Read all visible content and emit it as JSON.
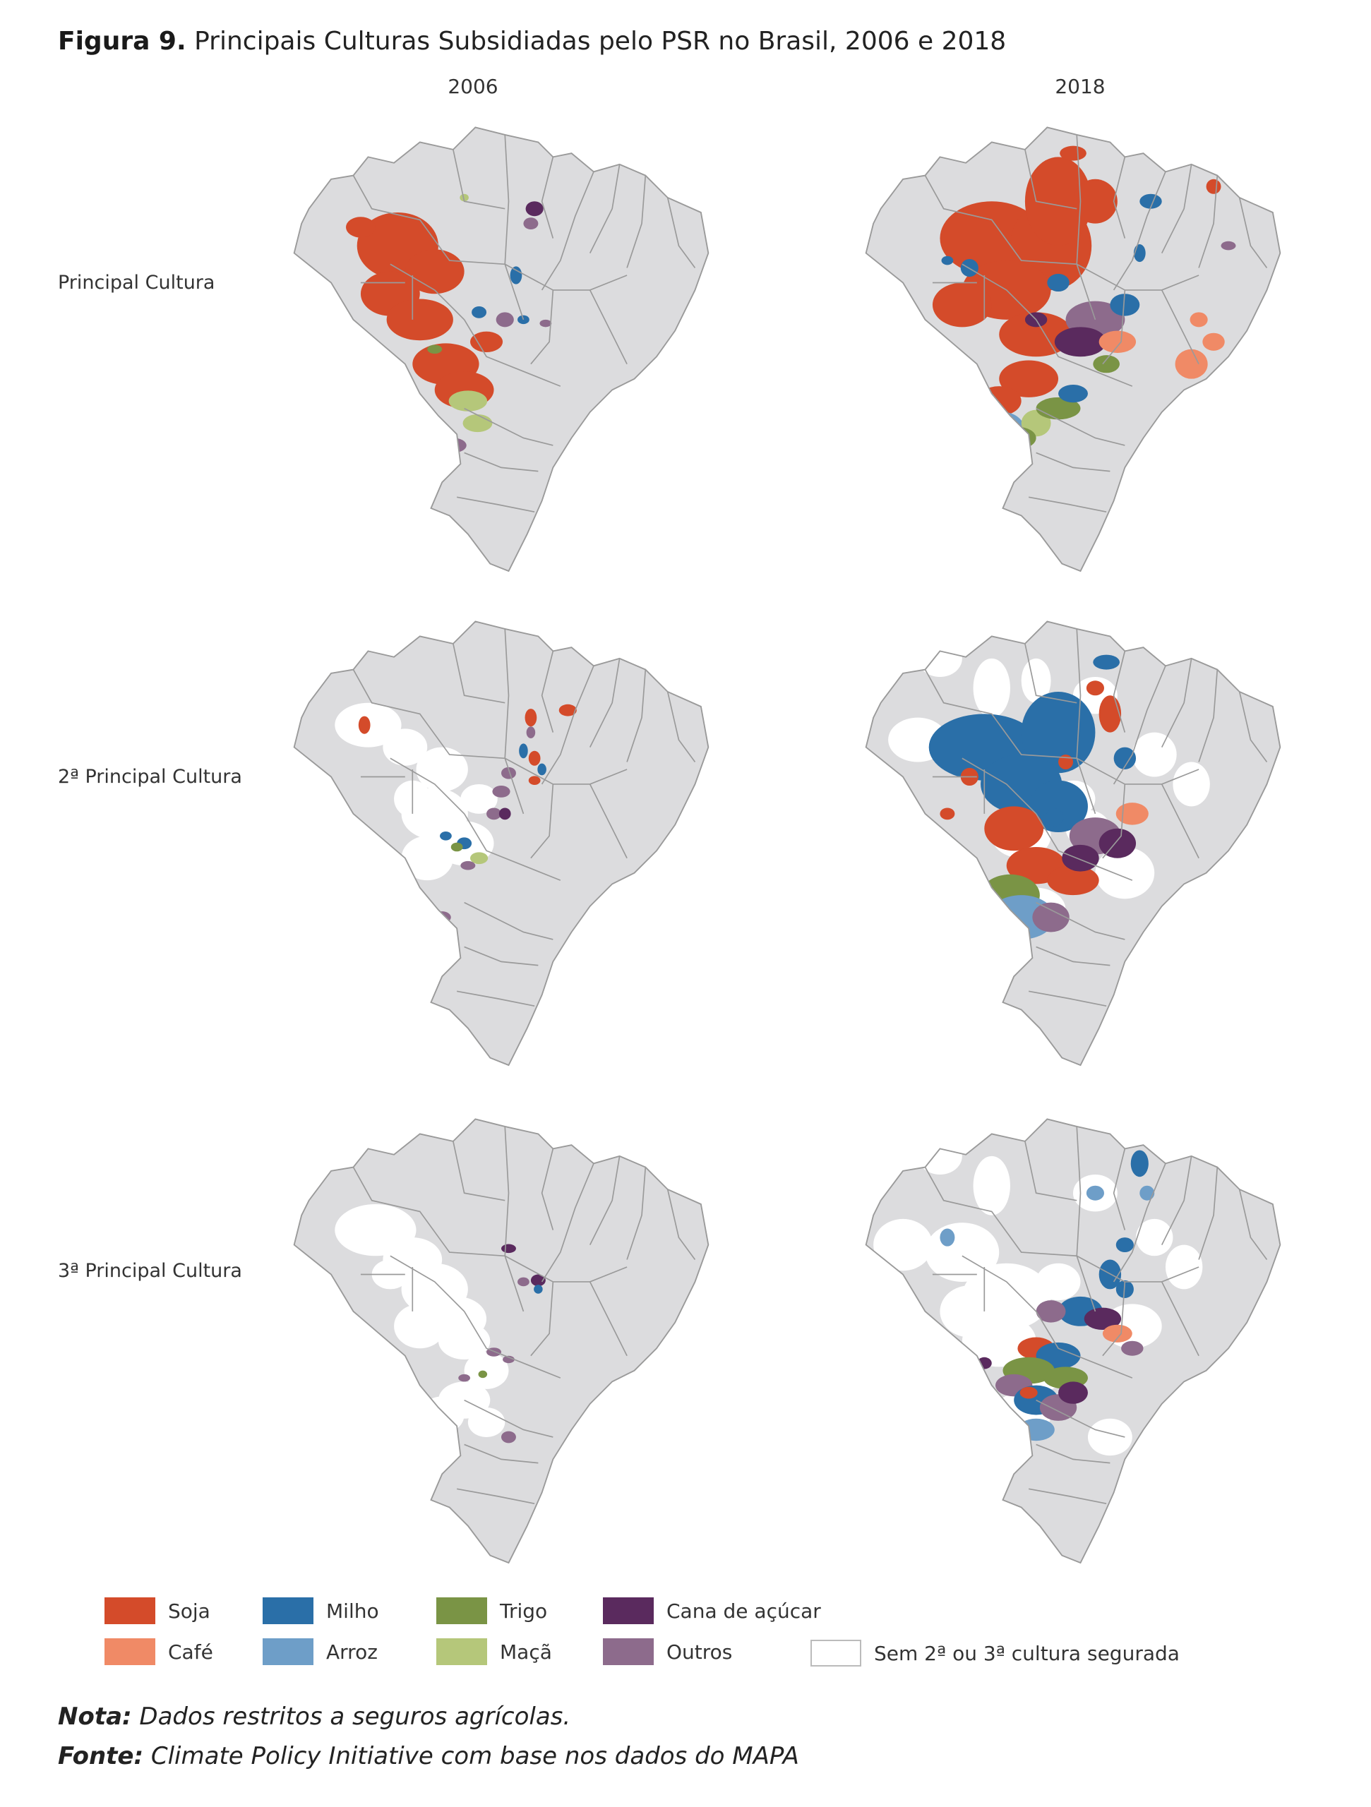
{
  "figure": {
    "title_bold": "Figura 9.",
    "title_rest": " Principais Culturas Subsidiadas pelo PSR no Brasil, 2006 e 2018"
  },
  "columns": [
    "2006",
    "2018"
  ],
  "rows": [
    "Principal Cultura",
    "2ª Principal Cultura",
    "3ª Principal Cultura"
  ],
  "legend": [
    {
      "label": "Soja",
      "color": "#d44b2a"
    },
    {
      "label": "Milho",
      "color": "#2a6fa8"
    },
    {
      "label": "Trigo",
      "color": "#7a9445"
    },
    {
      "label": "Cana de açúcar",
      "color": "#5a2a5e"
    },
    {
      "label": "Café",
      "color": "#f08a66"
    },
    {
      "label": "Arroz",
      "color": "#6e9ec8"
    },
    {
      "label": "Maçã",
      "color": "#b5c77a"
    },
    {
      "label": "Outros",
      "color": "#8d6b8c"
    },
    {
      "label": "Sem 2ª ou 3ª cultura segurada",
      "color": "#ffffff"
    }
  ],
  "notes": {
    "nota_label": "Nota:",
    "nota_text": " Dados restritos a seguros agrícolas.",
    "fonte_label": "Fonte:",
    "fonte_text": " Climate Policy Initiative com base nos dados do MAPA"
  },
  "colors": {
    "land": "#dcdcde",
    "border": "#9a9a9a",
    "uninsured": "#ffffff"
  }
}
